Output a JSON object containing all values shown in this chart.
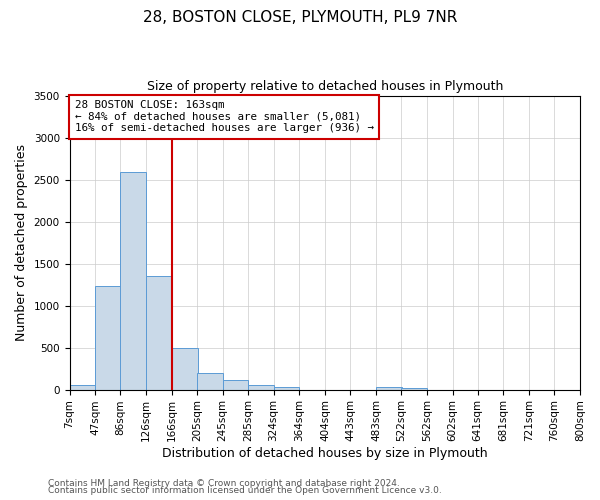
{
  "title": "28, BOSTON CLOSE, PLYMOUTH, PL9 7NR",
  "subtitle": "Size of property relative to detached houses in Plymouth",
  "xlabel": "Distribution of detached houses by size in Plymouth",
  "ylabel": "Number of detached properties",
  "bin_labels": [
    "7sqm",
    "47sqm",
    "86sqm",
    "126sqm",
    "166sqm",
    "205sqm",
    "245sqm",
    "285sqm",
    "324sqm",
    "364sqm",
    "404sqm",
    "443sqm",
    "483sqm",
    "522sqm",
    "562sqm",
    "602sqm",
    "641sqm",
    "681sqm",
    "721sqm",
    "760sqm",
    "800sqm"
  ],
  "bin_edges": [
    7,
    47,
    86,
    126,
    166,
    205,
    245,
    285,
    324,
    364,
    404,
    443,
    483,
    522,
    562,
    602,
    641,
    681,
    721,
    760,
    800
  ],
  "bar_values": [
    50,
    1230,
    2590,
    1350,
    500,
    200,
    110,
    50,
    30,
    0,
    0,
    0,
    30,
    20,
    0,
    0,
    0,
    0,
    0,
    0
  ],
  "bar_color": "#c9d9e8",
  "bar_edge_color": "#5b9bd5",
  "property_line_x": 166,
  "property_line_color": "#cc0000",
  "annotation_line1": "28 BOSTON CLOSE: 163sqm",
  "annotation_line2": "← 84% of detached houses are smaller (5,081)",
  "annotation_line3": "16% of semi-detached houses are larger (936) →",
  "annotation_box_color": "#ffffff",
  "annotation_box_edge_color": "#cc0000",
  "ylim": [
    0,
    3500
  ],
  "yticks": [
    0,
    500,
    1000,
    1500,
    2000,
    2500,
    3000,
    3500
  ],
  "footer_line1": "Contains HM Land Registry data © Crown copyright and database right 2024.",
  "footer_line2": "Contains public sector information licensed under the Open Government Licence v3.0.",
  "background_color": "#ffffff",
  "grid_color": "#cccccc",
  "title_fontsize": 11,
  "subtitle_fontsize": 9,
  "axis_label_fontsize": 9,
  "tick_fontsize": 7.5,
  "footer_fontsize": 6.5
}
